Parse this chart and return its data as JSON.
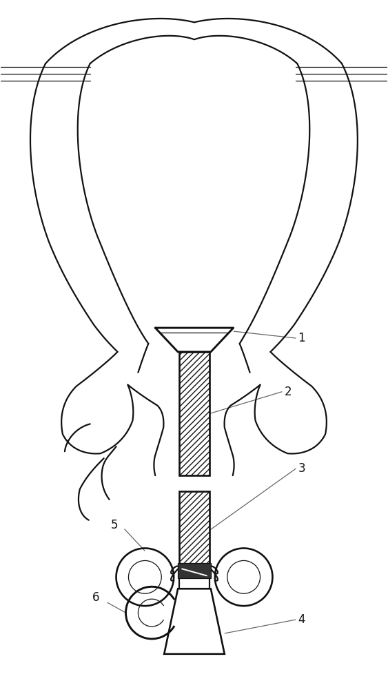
{
  "lw": 1.6,
  "lw_thin": 0.9,
  "fig_w": 5.63,
  "fig_h": 10.0,
  "dpi": 100,
  "line_color": "#111111",
  "label_fontsize": 12
}
